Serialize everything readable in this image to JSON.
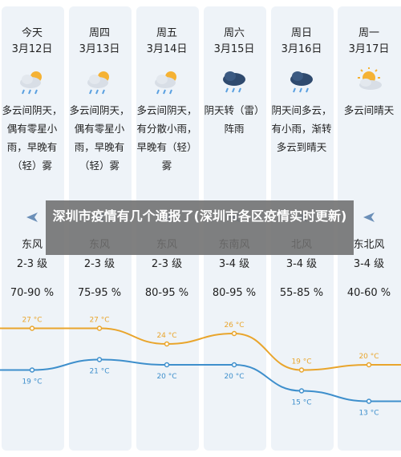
{
  "days": [
    {
      "name": "今天",
      "date": "3月12日",
      "icon": "partly-cloudy-rain-icon",
      "desc": "多云间阴天，偶有零星小雨，早晚有（轻）雾",
      "wind_dir": "东风",
      "wind_level": "2-3 级",
      "humidity": "70-90 %",
      "high": "27 °C",
      "low": "19 °C"
    },
    {
      "name": "周四",
      "date": "3月13日",
      "icon": "partly-cloudy-rain-icon",
      "desc": "多云间阴天，偶有零星小雨，早晚有（轻）雾",
      "wind_dir": "东风",
      "wind_level": "2-3 级",
      "humidity": "75-95 %",
      "high": "27 °C",
      "low": "21 °C"
    },
    {
      "name": "周五",
      "date": "3月14日",
      "icon": "partly-cloudy-rain-icon",
      "desc": "多云间阴天，有分散小雨，早晚有（轻）雾",
      "wind_dir": "东风",
      "wind_level": "2-3 级",
      "humidity": "80-95 %",
      "high": "24 °C",
      "low": "20 °C"
    },
    {
      "name": "周六",
      "date": "3月15日",
      "icon": "thunder-rain-icon",
      "desc": "阴天转（雷）阵雨",
      "wind_dir": "东南风",
      "wind_level": "3-4 级",
      "humidity": "80-95 %",
      "high": "26 °C",
      "low": "20 °C"
    },
    {
      "name": "周日",
      "date": "3月16日",
      "icon": "thunder-rain-icon",
      "desc": "阴天间多云，有小雨，渐转多云到晴天",
      "wind_dir": "北风",
      "wind_level": "3-4 级",
      "humidity": "55-85 %",
      "high": "19 °C",
      "low": "15 °C"
    },
    {
      "name": "周一",
      "date": "3月17日",
      "icon": "partly-sunny-icon",
      "desc": "多云间晴天",
      "wind_dir": "东北风",
      "wind_level": "3-4 级",
      "humidity": "40-60 %",
      "high": "20 °C",
      "low": "13 °C"
    }
  ],
  "chart_data": {
    "type": "line",
    "categories": [
      "3月12日",
      "3月13日",
      "3月14日",
      "3月15日",
      "3月16日",
      "3月17日"
    ],
    "series": [
      {
        "values": [
          27,
          27,
          24,
          26,
          19,
          20
        ]
      },
      {
        "values": [
          19,
          21,
          20,
          20,
          15,
          13
        ]
      }
    ],
    "ylim": [
      10,
      30
    ],
    "colors": {
      "high": "#e9a52c",
      "low": "#3e8fcc"
    }
  },
  "overlay": {
    "title": "深圳市疫情有几个通报了(深圳市各区疫情实时更新)"
  },
  "colors": {
    "column_bg": "#eef3f8",
    "cloud": "#d8dee6",
    "dark_cloud": "#2f4a6e",
    "sun": "#f5b234",
    "rain": "#5aa0e0",
    "arrow": "#6b8fb8"
  }
}
